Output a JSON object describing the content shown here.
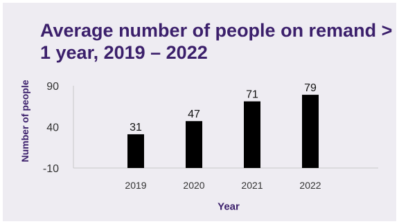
{
  "chart_data": {
    "type": "bar",
    "title": "Average number of people on remand > 1 year, 2019 – 2022",
    "xlabel": "Year",
    "ylabel": "Number of people",
    "categories": [
      "2019",
      "2020",
      "2021",
      "2022"
    ],
    "values": [
      31,
      47,
      71,
      79
    ],
    "yticks": [
      "90",
      "40",
      "-10"
    ],
    "ylim": [
      -10,
      90
    ],
    "grid": false,
    "colors": {
      "bar": "#000000",
      "title": "#3b1f6b",
      "background": "#eeecf2",
      "axis": "#c8c8c8"
    }
  }
}
